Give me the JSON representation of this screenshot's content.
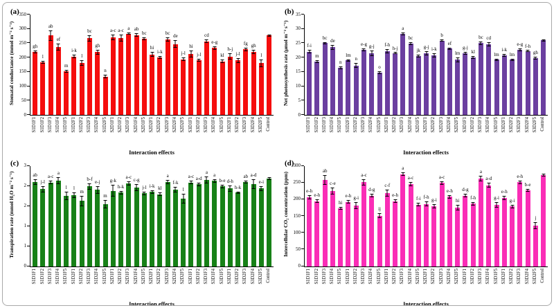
{
  "figure": {
    "background": "#ffffff",
    "border_color": "#a8a8a8",
    "axis_color": "#000000",
    "error_bar_color": "#000000"
  },
  "chart_data": [
    {
      "type": "bar",
      "panel_label": "(a)",
      "ylabel": "Stomatal conductance (mmol m⁻² s⁻¹)",
      "xlabel": "Interaction effects",
      "ylim": [
        0,
        350
      ],
      "grid": false,
      "legend": "none",
      "bar_color": "#f50d0d",
      "yticks": [
        {
          "v": 0,
          "t": "0"
        },
        {
          "v": 50,
          "t": "50"
        },
        {
          "v": 100,
          "t": "100"
        },
        {
          "v": 150,
          "t": "150"
        },
        {
          "v": 200,
          "t": "200"
        },
        {
          "v": 250,
          "t": "250"
        },
        {
          "v": 300,
          "t": "300"
        },
        {
          "v": 350,
          "t": "350"
        }
      ],
      "categories": [
        "S1D1F1",
        "S1D1F2",
        "S1D1F3",
        "S1D1F4",
        "S1D1F5",
        "S1D2F1",
        "S1D2F2",
        "S1D2F3",
        "S1D2F4",
        "S1D2F5",
        "S2D1F1",
        "S2D1F2",
        "S2D1F3",
        "S2D1F4",
        "S2D1F5",
        "S2D2F1",
        "S2D2F2",
        "S2D2F3",
        "S2D2F4",
        "S2D2F5",
        "S3D1F1",
        "S3D1F2",
        "S3D1F3",
        "S3D1F4",
        "S3D1F5",
        "S3D2F1",
        "S3D2F2",
        "S3D2F3",
        "S3D2F4",
        "S3D2F5",
        "Control"
      ],
      "values": [
        219,
        184,
        277,
        237,
        152,
        203,
        181,
        267,
        219,
        133,
        270,
        268,
        283,
        278,
        266,
        211,
        200,
        263,
        247,
        194,
        212,
        191,
        257,
        233,
        187,
        204,
        190,
        229,
        219,
        180,
        277
      ],
      "errors": [
        5,
        5,
        18,
        12,
        4,
        6,
        10,
        10,
        8,
        6,
        10,
        12,
        4,
        6,
        5,
        8,
        5,
        8,
        14,
        6,
        12,
        4,
        6,
        6,
        5,
        12,
        8,
        6,
        7,
        14,
        4
      ],
      "letters": [
        "gh",
        "l",
        "ab",
        "ef",
        "m",
        "i-k",
        "l",
        "bc",
        "gh",
        "n",
        "a-c",
        "a-c",
        "a",
        "ab",
        "bc",
        "hi",
        "i-k",
        "bc",
        "de",
        "j-l",
        "hi",
        "j-l",
        "cd",
        "e-g",
        "kl",
        "h-j",
        "j-l",
        "fg",
        "gh",
        "l",
        ""
      ]
    },
    {
      "type": "bar",
      "panel_label": "(b)",
      "ylabel": "Net photosynthesis rate (μmol m⁻² s⁻¹)",
      "xlabel": "Interaction effects",
      "ylim": [
        0,
        35
      ],
      "grid": false,
      "legend": "none",
      "bar_color": "#6b3fa0",
      "yticks": [
        {
          "v": 0,
          "t": "0"
        },
        {
          "v": 5,
          "t": "5"
        },
        {
          "v": 10,
          "t": "10"
        },
        {
          "v": 15,
          "t": "15"
        },
        {
          "v": 20,
          "t": "20"
        },
        {
          "v": 25,
          "t": "25"
        },
        {
          "v": 30,
          "t": "30"
        },
        {
          "v": 35,
          "t": "35"
        }
      ],
      "categories": [
        "S1D1F1",
        "S1D1F2",
        "S1D1F3",
        "S1D1F4",
        "S1D1F5",
        "S1D2F1",
        "S1D2F2",
        "S1D2F3",
        "S1D2F4",
        "S1D2F5",
        "S2D1F1",
        "S2D1F2",
        "S2D1F3",
        "S2D1F4",
        "S2D1F5",
        "S2D2F1",
        "S2D2F2",
        "S2D2F3",
        "S2D2F4",
        "S2D2F5",
        "S3D1F1",
        "S3D1F2",
        "S3D1F3",
        "S3D1F4",
        "S3D1F5",
        "S3D2F1",
        "S3D2F2",
        "S3D2F3",
        "S3D2F4",
        "S3D2F5",
        "Control"
      ],
      "values": [
        22.0,
        18.5,
        25.0,
        23.6,
        16.4,
        19.0,
        17.2,
        22.7,
        21.5,
        14.7,
        22.2,
        21.5,
        28.2,
        24.9,
        20.6,
        21.5,
        20.8,
        25.9,
        23.1,
        19.2,
        21.5,
        20.1,
        25.1,
        24.7,
        19.2,
        20.8,
        19.2,
        22.7,
        22.2,
        19.8,
        26.0
      ],
      "errors": [
        0.6,
        0.5,
        0.3,
        0.9,
        0.5,
        0.4,
        0.8,
        0.5,
        0.9,
        0.4,
        0.8,
        0.3,
        0.5,
        0.4,
        0.5,
        0.8,
        0.7,
        0.4,
        0.3,
        0.8,
        0.5,
        0.5,
        0.6,
        0.7,
        0.3,
        0.4,
        0.3,
        0.5,
        0.3,
        0.6,
        0.4
      ],
      "letters": [
        "f-i",
        "m",
        "bc",
        "de",
        "n",
        "lm",
        "n",
        "e-g",
        "g-j",
        "o",
        "f-h",
        "h-j",
        "a",
        "bc",
        "jk",
        "g-j",
        "i-k",
        "b",
        "ef",
        "lm",
        "g-j",
        "kl",
        "bc",
        "cd",
        "lm",
        "i-k",
        "lm",
        "e-g",
        "f-h",
        "gh",
        ""
      ]
    },
    {
      "type": "bar",
      "panel_label": "(c)",
      "ylabel": "Transpiration rate (mmol H₂O m⁻² s⁻¹)",
      "xlabel": "Interaction effects",
      "ylim": [
        0,
        3
      ],
      "grid": false,
      "legend": "none",
      "bar_color": "#178117",
      "yticks": [
        {
          "v": 0,
          "t": "0"
        },
        {
          "v": 0.6,
          "t": "1"
        },
        {
          "v": 1.2,
          "t": "1"
        },
        {
          "v": 1.8,
          "t": "2"
        },
        {
          "v": 2.4,
          "t": "2"
        },
        {
          "v": 3,
          "t": "3"
        }
      ],
      "categories": [
        "S1D1F1",
        "S1D1F2",
        "S1D1F3",
        "S1D1F4",
        "S1D1F5",
        "S1D2F1",
        "S1D2F2",
        "S1D2F3",
        "S1D2F4",
        "S1D2F5",
        "S2D1F1",
        "S2D1F2",
        "S2D1F3",
        "S2D1F4",
        "S2D1F5",
        "S2D2F1",
        "S2D2F2",
        "S2D2F3",
        "S2D2F4",
        "S2D2F5",
        "S3D1F1",
        "S3D1F2",
        "S3D1F3",
        "S3D1F4",
        "S3D1F5",
        "S3D2F1",
        "S3D2F2",
        "S3D2F3",
        "S3D2F4",
        "S3D2F5",
        "Control"
      ],
      "values": [
        2.52,
        2.3,
        2.5,
        2.55,
        2.1,
        2.12,
        1.95,
        2.38,
        2.28,
        1.85,
        2.25,
        2.2,
        2.48,
        2.35,
        2.18,
        2.22,
        2.15,
        2.52,
        2.28,
        2.02,
        2.5,
        2.45,
        2.58,
        2.55,
        2.38,
        2.32,
        2.2,
        2.52,
        2.45,
        2.32,
        2.62
      ],
      "errors": [
        0.08,
        0.1,
        0.05,
        0.1,
        0.12,
        0.08,
        0.15,
        0.1,
        0.12,
        0.12,
        0.18,
        0.05,
        0.06,
        0.1,
        0.05,
        0.05,
        0.05,
        0.06,
        0.08,
        0.15,
        0.05,
        0.05,
        0.1,
        0.05,
        0.06,
        0.1,
        0.03,
        0.04,
        0.15,
        0.07,
        0.04
      ],
      "letters": [
        "ab",
        "j-l",
        "a-c",
        "a",
        "l",
        "l",
        "m",
        "b-f",
        "e-j",
        "m",
        "g-k",
        "h-k",
        "a-c",
        "c-g",
        "j-l",
        "i-k",
        "kl",
        "a",
        "f-k",
        "l",
        "a-c",
        "a-d",
        "a",
        "a",
        "b-e",
        "d-h",
        "h-k",
        "ab",
        "a-d",
        "e-i",
        ""
      ]
    },
    {
      "type": "bar",
      "panel_label": "(d)",
      "ylabel": "Intercellular CO₂ concentration (ppm)",
      "xlabel": "Interaction effects",
      "ylim": [
        0,
        300
      ],
      "grid": false,
      "legend": "none",
      "bar_color": "#fa2db6",
      "yticks": [
        {
          "v": 0,
          "t": "0"
        },
        {
          "v": 50,
          "t": "50"
        },
        {
          "v": 100,
          "t": "100"
        },
        {
          "v": 150,
          "t": "150"
        },
        {
          "v": 200,
          "t": "200"
        },
        {
          "v": 250,
          "t": "250"
        },
        {
          "v": 300,
          "t": "300"
        }
      ],
      "categories": [
        "S1D1F1",
        "S1D1F2",
        "S1D1F3",
        "S1D1F4",
        "S1D1F5",
        "S1D2F1",
        "S1D2F2",
        "S1D2F3",
        "S1D2F4",
        "S1D2F5",
        "S2D1F1",
        "S2D1F2",
        "S2D1F3",
        "S2D1F4",
        "S2D1F5",
        "S2D2F1",
        "S2D2F2",
        "S2D2F3",
        "S2D2F4",
        "S2D2F5",
        "S3D1F1",
        "S3D1F2",
        "S3D1F3",
        "S3D1F4",
        "S3D1F5",
        "S3D2F1",
        "S3D2F2",
        "S3D2F3",
        "S3D2F4",
        "S3D2F5",
        "Control"
      ],
      "values": [
        206,
        194,
        258,
        225,
        172,
        192,
        181,
        251,
        211,
        151,
        218,
        194,
        275,
        245,
        184,
        186,
        179,
        249,
        207,
        175,
        211,
        187,
        262,
        242,
        183,
        204,
        178,
        251,
        226,
        121,
        272
      ],
      "errors": [
        6,
        5,
        14,
        10,
        4,
        5,
        10,
        9,
        6,
        7,
        10,
        5,
        5,
        7,
        5,
        8,
        7,
        5,
        5,
        9,
        6,
        5,
        8,
        7,
        8,
        6,
        5,
        5,
        4,
        10,
        5
      ],
      "letters": [
        "e-h",
        "e-h",
        "ab",
        "c-e",
        "hi",
        "e-h",
        "g-i",
        "a-c",
        "d-g",
        "ij",
        "c-f",
        "e-h",
        "a",
        "a-c",
        "f-i",
        "f-h",
        "g-i",
        "a-c",
        "e-h",
        "hi",
        "d-g",
        "f-h",
        "a",
        "a-d",
        "g-i",
        "e-h",
        "g-i",
        "e-h",
        "b-e",
        "j",
        ""
      ]
    }
  ]
}
